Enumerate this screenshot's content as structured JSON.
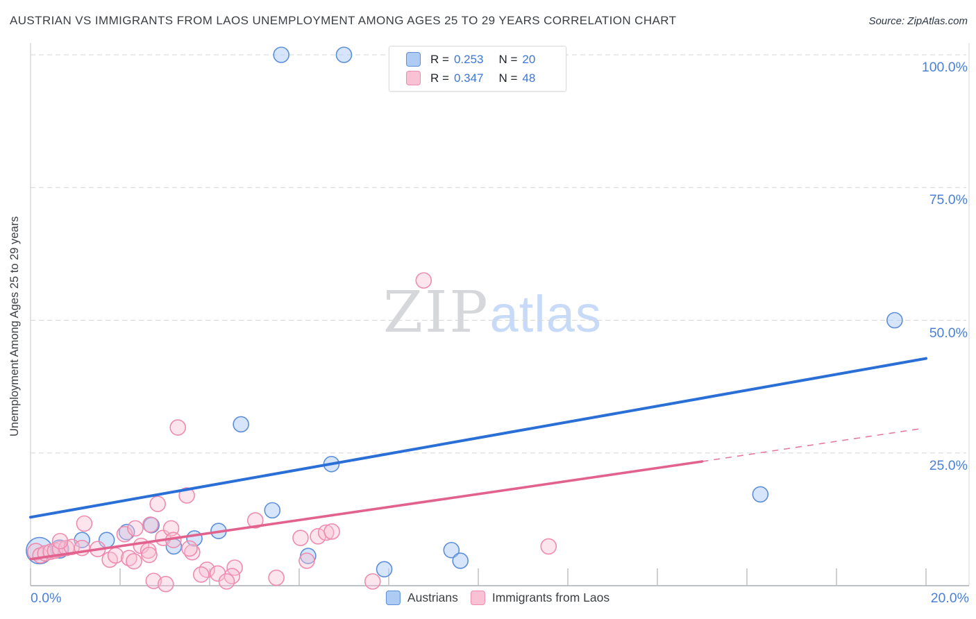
{
  "title": "AUSTRIAN VS IMMIGRANTS FROM LAOS UNEMPLOYMENT AMONG AGES 25 TO 29 YEARS CORRELATION CHART",
  "source": "Source: ZipAtlas.com",
  "watermark": {
    "zip": "ZIP",
    "atlas": "atlas"
  },
  "stats_box": {
    "rows": [
      {
        "series": "austrians",
        "r_label": "R =",
        "r_value": "0.253",
        "n_label": "N =",
        "n_value": "20"
      },
      {
        "series": "laos",
        "r_label": "R =",
        "r_value": "0.347",
        "n_label": "N =",
        "n_value": "48"
      }
    ]
  },
  "y_axis": {
    "label": "Unemployment Among Ages 25 to 29 years",
    "ticks": [
      {
        "label": "100.0%",
        "value": 100
      },
      {
        "label": "75.0%",
        "value": 75
      },
      {
        "label": "50.0%",
        "value": 50
      },
      {
        "label": "25.0%",
        "value": 25
      }
    ]
  },
  "x_axis": {
    "min_label": "0.0%",
    "max_label": "20.0%",
    "tick_step_pct": 2
  },
  "legend": {
    "items": [
      {
        "series": "austrians",
        "label": "Austrians"
      },
      {
        "series": "laos",
        "label": "Immigrants from Laos"
      }
    ]
  },
  "colors": {
    "blue_fill": "#aecbf4",
    "blue_stroke": "#5b8dd9",
    "pink_fill": "#f9c2d4",
    "pink_stroke": "#ee8bae",
    "blue_trend": "#2a6fd6",
    "pink_trend": "#e2628e",
    "grid": "#d6d6d6",
    "axis": "#a9adb2",
    "spine": "#cbcfd3",
    "tick": "#b4b8bc",
    "tick_label_blue": "#4a80d8"
  },
  "chart_data": {
    "type": "scatter",
    "title": "Austrian vs Immigrants from Laos Unemployment Among Ages 25 to 29 years",
    "xlabel": "",
    "ylabel": "Unemployment Among Ages 25 to 29 years",
    "xlim": [
      0,
      20
    ],
    "ylim": [
      0,
      105
    ],
    "grid": "horizontal-dashed",
    "legend_position": "bottom-center",
    "series": [
      {
        "name": "Austrians",
        "R": 0.253,
        "N": 20,
        "points": [
          [
            5.6,
            100,
            11
          ],
          [
            7.0,
            100,
            11
          ],
          [
            4.7,
            30.4,
            11
          ],
          [
            6.72,
            22.9,
            11
          ],
          [
            19.3,
            50,
            11
          ],
          [
            16.3,
            17.2,
            11
          ],
          [
            5.4,
            14.2,
            11
          ],
          [
            0.2,
            6.6,
            19
          ],
          [
            9.4,
            6.7,
            11
          ],
          [
            9.6,
            4.7,
            11
          ],
          [
            7.9,
            3.1,
            11
          ],
          [
            6.2,
            5.6,
            11
          ],
          [
            4.2,
            10.3,
            11
          ],
          [
            2.7,
            11.4,
            11
          ],
          [
            3.2,
            7.4,
            11
          ],
          [
            1.15,
            8.6,
            11
          ],
          [
            1.7,
            8.6,
            11
          ],
          [
            2.15,
            10.1,
            11
          ],
          [
            0.65,
            6.9,
            13
          ],
          [
            3.66,
            8.9,
            11
          ]
        ],
        "trend": {
          "x1": 0,
          "y1": 12.9,
          "x2": 20,
          "y2": 42.8,
          "style": "solid"
        }
      },
      {
        "name": "Immigrants from Laos",
        "R": 0.347,
        "N": 48,
        "points": [
          [
            0.12,
            6.4,
            12
          ],
          [
            0.22,
            5.7,
            11
          ],
          [
            0.33,
            6.1,
            11
          ],
          [
            0.45,
            6.4,
            11
          ],
          [
            0.55,
            6.6,
            11
          ],
          [
            0.66,
            6.9,
            11
          ],
          [
            0.8,
            7.1,
            11
          ],
          [
            0.92,
            7.3,
            11
          ],
          [
            1.2,
            11.7,
            11
          ],
          [
            1.5,
            6.9,
            11
          ],
          [
            1.77,
            4.9,
            11
          ],
          [
            1.9,
            5.7,
            11
          ],
          [
            2.1,
            9.7,
            11
          ],
          [
            2.34,
            10.8,
            11
          ],
          [
            2.47,
            7.5,
            11
          ],
          [
            2.63,
            6.6,
            11
          ],
          [
            2.96,
            9.0,
            11
          ],
          [
            2.68,
            11.5,
            11
          ],
          [
            2.2,
            5.2,
            11
          ],
          [
            2.31,
            4.6,
            11
          ],
          [
            2.65,
            5.8,
            11
          ],
          [
            3.61,
            6.3,
            11
          ],
          [
            3.94,
            3.0,
            11
          ],
          [
            3.81,
            2.1,
            11
          ],
          [
            4.18,
            2.3,
            11
          ],
          [
            4.56,
            3.4,
            11
          ],
          [
            5.49,
            1.5,
            11
          ],
          [
            6.17,
            4.7,
            11
          ],
          [
            2.84,
            15.4,
            11
          ],
          [
            3.49,
            17.0,
            11
          ],
          [
            3.29,
            29.8,
            11
          ],
          [
            5.02,
            12.3,
            11
          ],
          [
            6.03,
            9.0,
            11
          ],
          [
            6.42,
            9.3,
            11
          ],
          [
            6.6,
            10.0,
            11
          ],
          [
            6.73,
            10.2,
            11
          ],
          [
            11.57,
            7.4,
            11
          ],
          [
            8.78,
            57.5,
            11
          ],
          [
            0.66,
            8.4,
            11
          ],
          [
            1.15,
            7.1,
            11
          ],
          [
            3.14,
            10.8,
            11
          ],
          [
            3.19,
            8.6,
            11
          ],
          [
            3.55,
            7.0,
            11
          ],
          [
            7.64,
            0.8,
            11
          ],
          [
            4.5,
            1.8,
            11
          ],
          [
            2.75,
            0.9,
            11
          ],
          [
            3.02,
            0.3,
            11
          ],
          [
            4.38,
            0.8,
            11
          ]
        ],
        "trend": {
          "x1": 0,
          "y1": 5.0,
          "x2": 15.0,
          "y2": 23.4,
          "style": "solid"
        },
        "trend_extension": {
          "x1": 15.0,
          "y1": 23.4,
          "x2": 19.9,
          "y2": 29.6,
          "style": "dashed"
        }
      }
    ]
  }
}
